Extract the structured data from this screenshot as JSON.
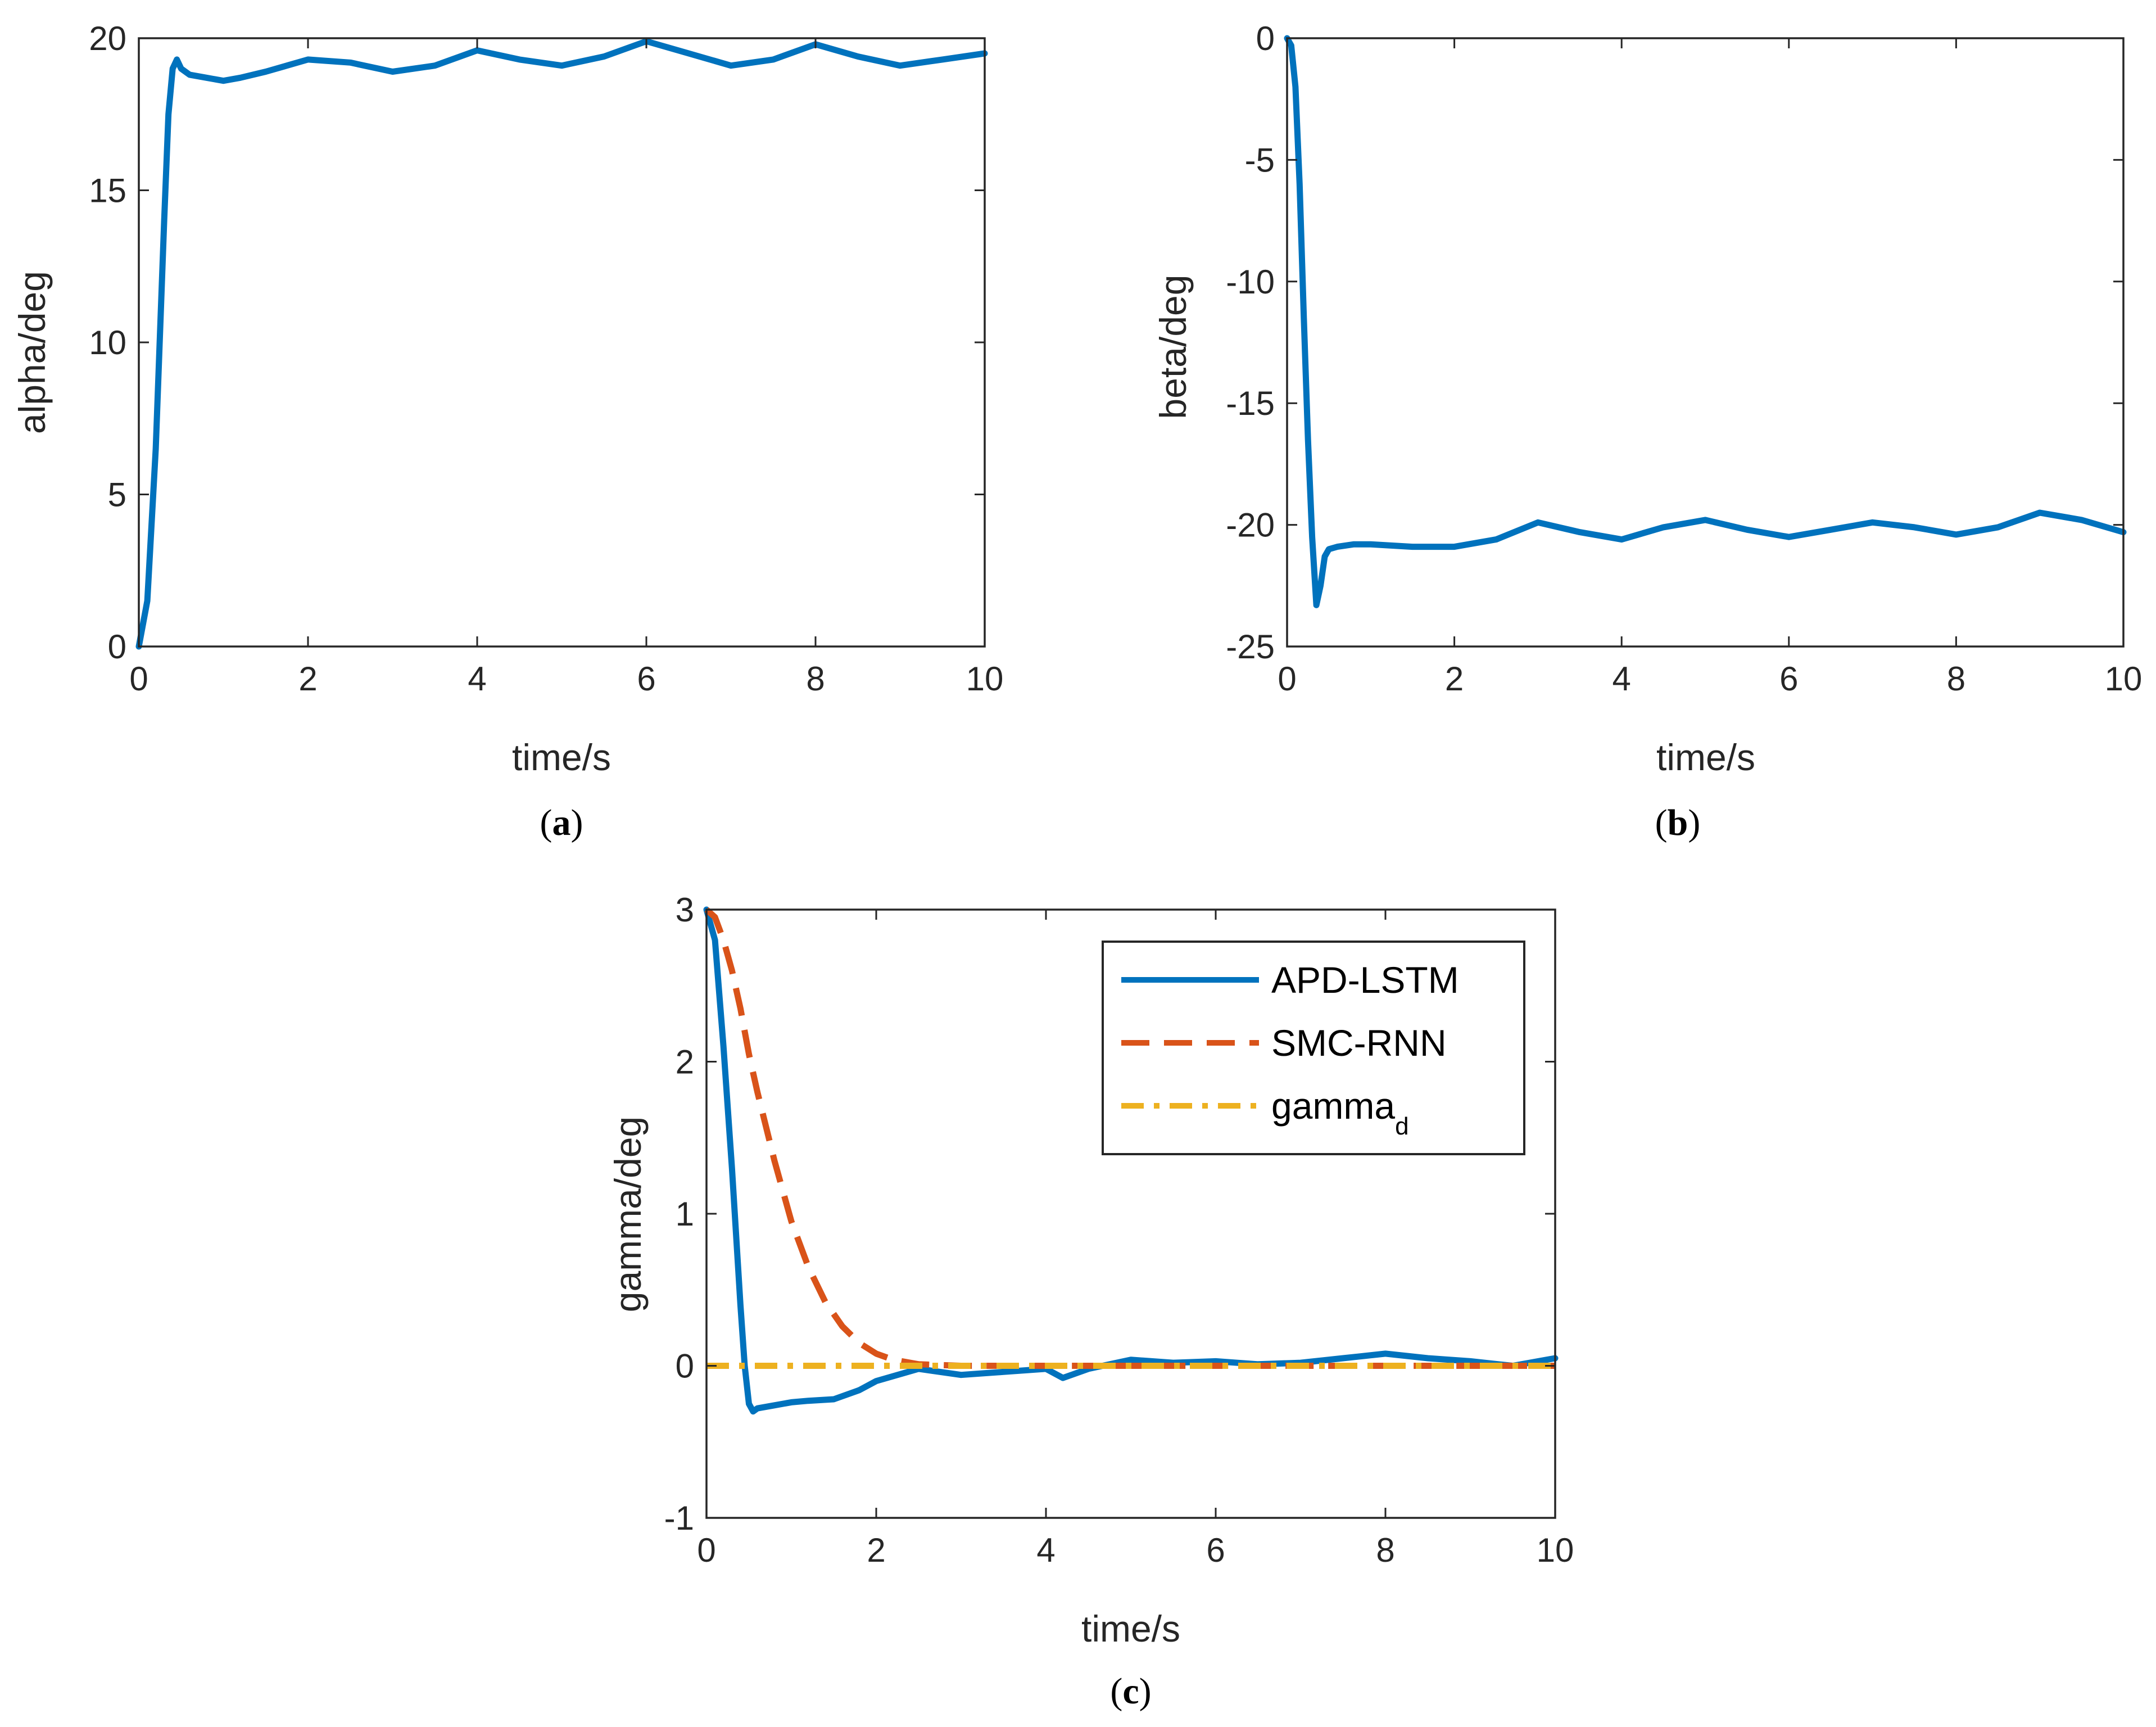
{
  "colors": {
    "apd": "#0072BD",
    "smc": "#D95319",
    "ref": "#EDB120",
    "axis": "#262626"
  },
  "chart_data": [
    {
      "type": "line",
      "caption": "a",
      "xlabel": "time/s",
      "ylabel": "alpha/deg",
      "xlim": [
        0,
        10
      ],
      "ylim": [
        0,
        20
      ],
      "xticks": [
        0,
        2,
        4,
        6,
        8,
        10
      ],
      "yticks": [
        0,
        5,
        10,
        15,
        20
      ],
      "grid": false,
      "series": [
        {
          "color": "#0072BD",
          "dash": "solid",
          "x": [
            0,
            0.1,
            0.2,
            0.3,
            0.35,
            0.4,
            0.45,
            0.5,
            0.6,
            0.8,
            1,
            1.2,
            1.5,
            2,
            2.5,
            3,
            3.5,
            4,
            4.5,
            5,
            5.5,
            6,
            6.5,
            7,
            7.5,
            8,
            8.5,
            9,
            9.5,
            10
          ],
          "y": [
            0,
            1.5,
            6.5,
            14.0,
            17.5,
            19.0,
            19.3,
            19.0,
            18.8,
            18.7,
            18.6,
            18.7,
            18.9,
            19.3,
            19.2,
            18.9,
            19.1,
            19.6,
            19.3,
            19.1,
            19.4,
            19.9,
            19.5,
            19.1,
            19.3,
            19.8,
            19.4,
            19.1,
            19.3,
            19.5
          ]
        }
      ]
    },
    {
      "type": "line",
      "caption": "b",
      "xlabel": "time/s",
      "ylabel": "beta/deg",
      "xlim": [
        0,
        10
      ],
      "ylim": [
        -25,
        0
      ],
      "xticks": [
        0,
        2,
        4,
        6,
        8,
        10
      ],
      "yticks": [
        0,
        -5,
        -10,
        -15,
        -20,
        -25
      ],
      "grid": false,
      "series": [
        {
          "color": "#0072BD",
          "dash": "solid",
          "x": [
            0,
            0.05,
            0.1,
            0.15,
            0.2,
            0.25,
            0.3,
            0.35,
            0.4,
            0.45,
            0.5,
            0.6,
            0.8,
            1,
            1.5,
            2,
            2.5,
            3,
            3.5,
            4,
            4.5,
            5,
            5.5,
            6,
            6.5,
            7,
            7.5,
            8,
            8.5,
            9,
            9.5,
            10
          ],
          "y": [
            0,
            -0.3,
            -2.0,
            -6.0,
            -11.5,
            -16.5,
            -20.5,
            -23.3,
            -22.5,
            -21.3,
            -21.0,
            -20.9,
            -20.8,
            -20.8,
            -20.9,
            -20.9,
            -20.6,
            -19.9,
            -20.3,
            -20.6,
            -20.1,
            -19.8,
            -20.2,
            -20.5,
            -20.2,
            -19.9,
            -20.1,
            -20.4,
            -20.1,
            -19.5,
            -19.8,
            -20.3
          ]
        }
      ]
    },
    {
      "type": "line",
      "caption": "c",
      "xlabel": "time/s",
      "ylabel": "gamma/deg",
      "xlim": [
        0,
        10
      ],
      "ylim": [
        -1,
        3
      ],
      "xticks": [
        0,
        2,
        4,
        6,
        8,
        10
      ],
      "yticks": [
        -1,
        0,
        1,
        2,
        3
      ],
      "grid": false,
      "legend": "top-right",
      "series": [
        {
          "name": "APD-LSTM",
          "color": "#0072BD",
          "dash": "solid",
          "x": [
            0,
            0.1,
            0.2,
            0.3,
            0.4,
            0.45,
            0.5,
            0.55,
            0.6,
            0.8,
            1,
            1.2,
            1.5,
            1.8,
            2,
            2.5,
            3,
            3.5,
            4,
            4.2,
            4.5,
            5,
            5.5,
            6,
            6.5,
            7,
            7.5,
            8,
            8.5,
            9,
            9.5,
            10
          ],
          "y": [
            3.0,
            2.8,
            2.1,
            1.3,
            0.4,
            0.0,
            -0.25,
            -0.3,
            -0.28,
            -0.26,
            -0.24,
            -0.23,
            -0.22,
            -0.16,
            -0.1,
            -0.02,
            -0.06,
            -0.04,
            -0.02,
            -0.08,
            -0.02,
            0.04,
            0.02,
            0.03,
            0.01,
            0.02,
            0.05,
            0.08,
            0.05,
            0.03,
            0.0,
            0.05
          ]
        },
        {
          "name": "SMC-RNN",
          "color": "#D95319",
          "dash": "dashed",
          "x": [
            0,
            0.1,
            0.2,
            0.3,
            0.4,
            0.5,
            0.6,
            0.8,
            1.0,
            1.2,
            1.4,
            1.6,
            1.8,
            2.0,
            2.2,
            2.5,
            3,
            4,
            5,
            6,
            7,
            8,
            9,
            10
          ],
          "y": [
            3.0,
            2.95,
            2.8,
            2.6,
            2.35,
            2.05,
            1.8,
            1.35,
            0.95,
            0.65,
            0.42,
            0.26,
            0.15,
            0.08,
            0.04,
            0.01,
            0.0,
            0.0,
            0.0,
            0.0,
            0.0,
            0.0,
            0.0,
            0.0
          ]
        },
        {
          "name": "gamma",
          "name_sub": "d",
          "color": "#EDB120",
          "dash": "dashdot",
          "x": [
            0,
            10
          ],
          "y": [
            0,
            0
          ]
        }
      ]
    }
  ]
}
